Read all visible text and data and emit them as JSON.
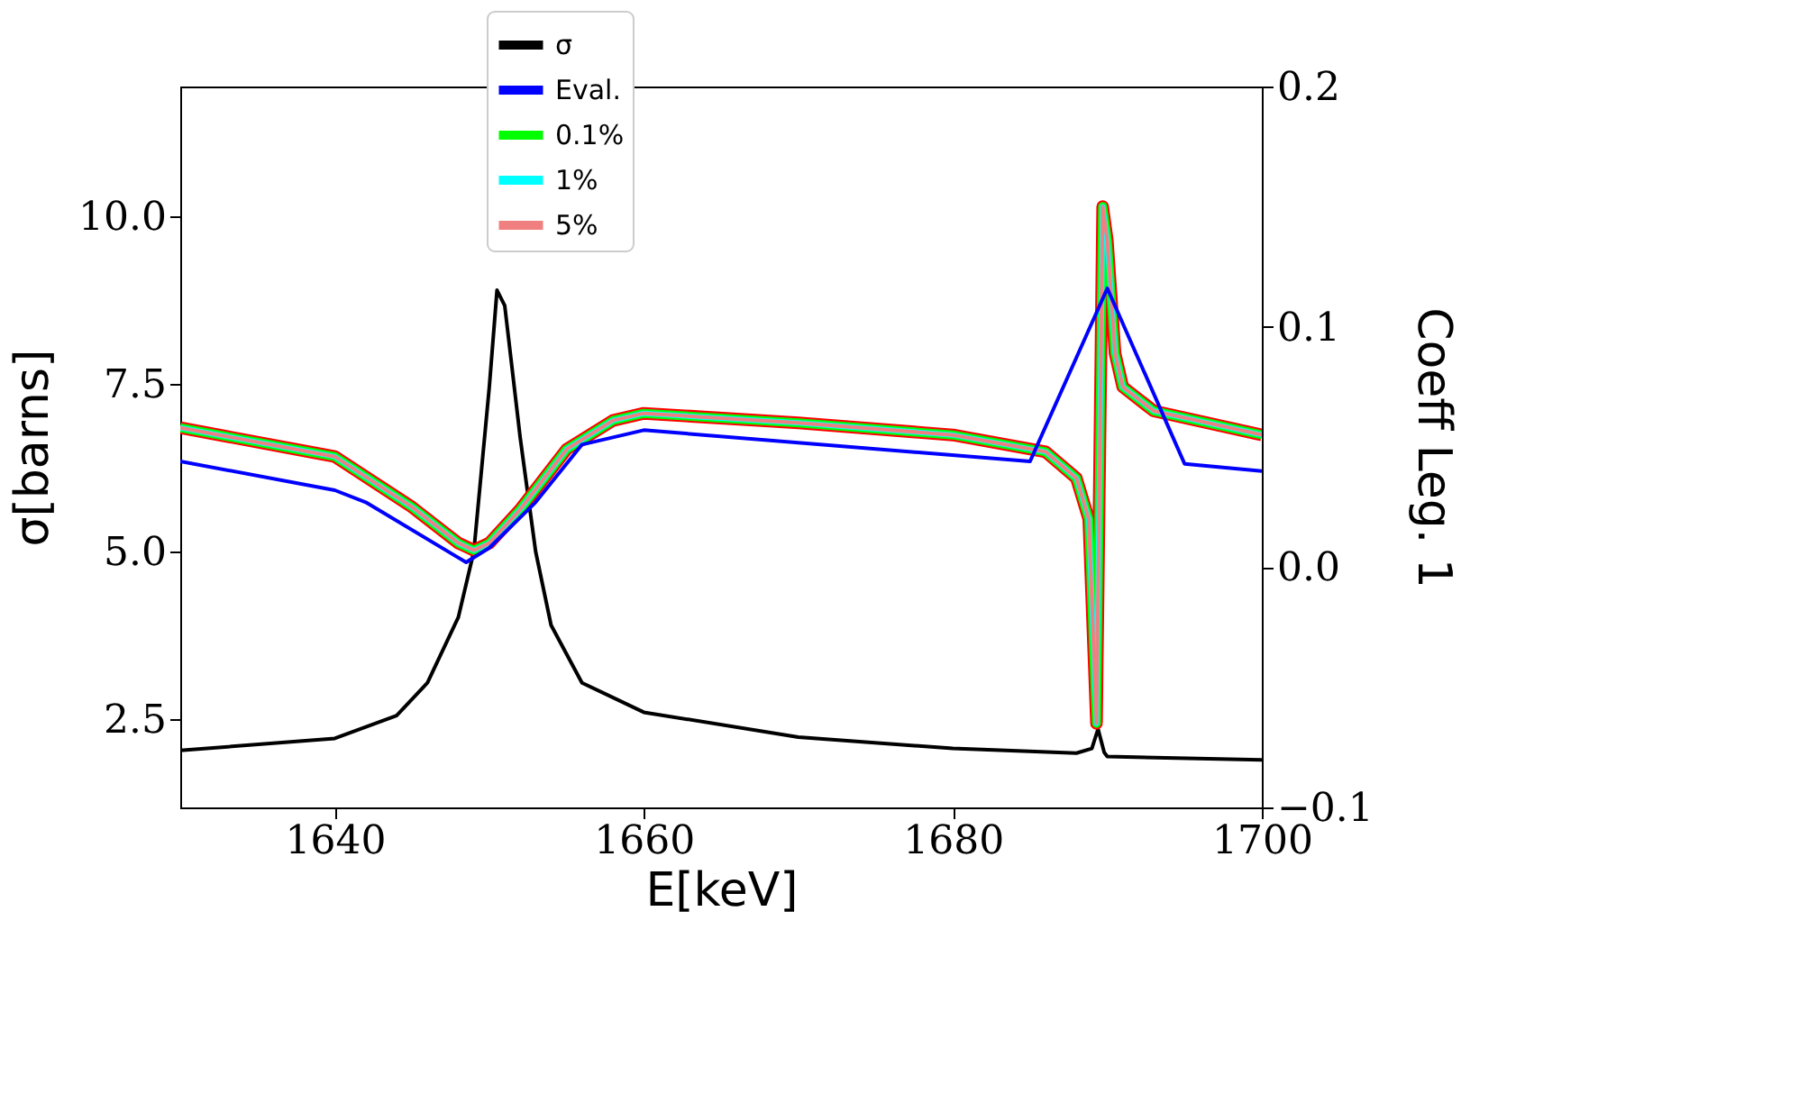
{
  "chart_data": {
    "type": "line",
    "xlabel": "E[keV]",
    "ylabel": "σ[barns]",
    "y2label": "Coeff Leg. 1",
    "xlim": [
      1630,
      1700
    ],
    "xticks": [
      1640,
      1660,
      1680,
      1700
    ],
    "ylim": [
      1.18,
      11.94
    ],
    "yticks": [
      2.5,
      {
        "value": 5,
        "label": "5.0"
      },
      7.5,
      {
        "value": 10,
        "label": "10.0"
      }
    ],
    "y2lim": [
      -0.1,
      0.2
    ],
    "y2ticks": [
      {
        "value": -0.1,
        "label": "−0.1"
      },
      {
        "value": 0,
        "label": "0.0"
      },
      0.1,
      0.2
    ],
    "grid": false,
    "legend": "top",
    "marker": "none",
    "line_style": "solid",
    "series": [
      {
        "name": "σ",
        "color": "#000000",
        "x": [
          1630,
          1640,
          1644,
          1646,
          1648,
          1649,
          1650,
          1650.5,
          1651,
          1652,
          1653,
          1654,
          1656,
          1660,
          1670,
          1680,
          1688,
          1689,
          1689.4,
          1689.8,
          1690,
          1700
        ],
        "values": [
          2.03,
          2.21,
          2.55,
          3.04,
          4.02,
          5.0,
          7.45,
          8.9,
          8.67,
          6.7,
          5.0,
          3.9,
          3.04,
          2.6,
          2.23,
          2.06,
          1.99,
          2.06,
          2.35,
          2.0,
          1.94,
          1.89
        ]
      },
      {
        "name": "Eval.",
        "color": "#0000ff",
        "axis": "y2",
        "x": [
          1630,
          1640,
          1642,
          1648.5,
          1650,
          1653,
          1656,
          1660,
          1685,
          1690,
          1695,
          1700
        ],
        "values": [
          0.044,
          0.032,
          0.027,
          0.002,
          0.008,
          0.027,
          0.051,
          0.057,
          0.044,
          0.116,
          0.043,
          0.04
        ]
      },
      {
        "color": "#ff0000",
        "axis": "y2",
        "x": [
          1630,
          1640,
          1645,
          1648,
          1649,
          1650,
          1652,
          1655,
          1658,
          1660,
          1670,
          1680,
          1686,
          1688,
          1688.8,
          1689.3,
          1689.5,
          1689.7,
          1690,
          1690.5,
          1691,
          1693,
          1700
        ],
        "values": [
          0.058,
          0.046,
          0.025,
          0.01,
          0.007,
          0.01,
          0.024,
          0.049,
          0.061,
          0.064,
          0.06,
          0.055,
          0.048,
          0.037,
          0.02,
          -0.065,
          0.041,
          0.15,
          0.136,
          0.089,
          0.075,
          0.065,
          0.055
        ]
      },
      {
        "name": "0.1%",
        "color": "#00ff00",
        "axis": "y2",
        "x": [
          1630,
          1640,
          1645,
          1648,
          1649,
          1650,
          1652,
          1655,
          1658,
          1660,
          1670,
          1680,
          1686,
          1688,
          1688.8,
          1689.3,
          1689.5,
          1689.7,
          1690,
          1690.5,
          1691,
          1693,
          1700
        ],
        "values": [
          0.058,
          0.046,
          0.025,
          0.01,
          0.007,
          0.01,
          0.024,
          0.049,
          0.061,
          0.064,
          0.06,
          0.055,
          0.048,
          0.037,
          0.02,
          -0.065,
          0.041,
          0.15,
          0.136,
          0.089,
          0.075,
          0.065,
          0.055
        ]
      },
      {
        "name": "1%",
        "color": "#00ffff",
        "axis": "y2",
        "x": [
          1630,
          1640,
          1645,
          1648,
          1649,
          1650,
          1652,
          1655,
          1658,
          1660,
          1670,
          1680,
          1686,
          1688,
          1688.8,
          1689.3,
          1689.5,
          1689.7,
          1690,
          1690.5,
          1691,
          1693,
          1700
        ],
        "values": [
          0.058,
          0.046,
          0.025,
          0.01,
          0.007,
          0.01,
          0.024,
          0.049,
          0.061,
          0.064,
          0.06,
          0.055,
          0.048,
          0.037,
          0.02,
          -0.065,
          0.041,
          0.15,
          0.136,
          0.089,
          0.075,
          0.065,
          0.055
        ]
      },
      {
        "name": "5%",
        "color": "#f08080",
        "axis": "y2",
        "x": [
          1630,
          1640,
          1645,
          1648,
          1649,
          1650,
          1652,
          1655,
          1658,
          1660,
          1670,
          1680,
          1686,
          1688,
          1688.8,
          1689.3,
          1689.5,
          1689.7,
          1690,
          1690.5,
          1691,
          1693,
          1700
        ],
        "values": [
          0.058,
          0.046,
          0.025,
          0.01,
          0.007,
          0.01,
          0.024,
          0.049,
          0.061,
          0.064,
          0.06,
          0.055,
          0.048,
          0.037,
          0.02,
          -0.065,
          0.041,
          0.15,
          0.136,
          0.089,
          0.075,
          0.065,
          0.055
        ]
      }
    ]
  }
}
